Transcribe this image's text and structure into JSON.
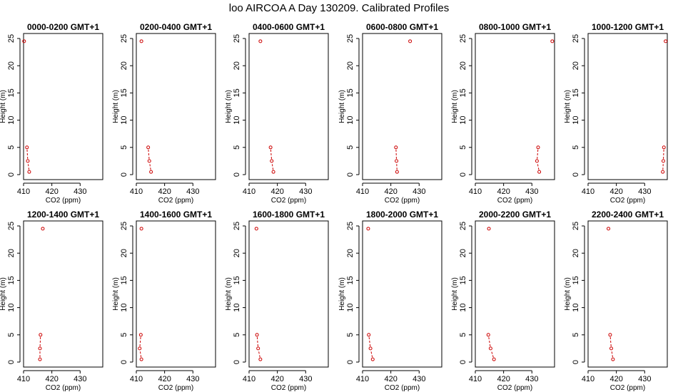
{
  "figure": {
    "title": "loo AIRCOA A  Day 130209. Calibrated Profiles"
  },
  "style": {
    "point_color": "#cc0000",
    "line_color": "#cc0000",
    "axis_color": "#000000"
  },
  "chart_data": [
    {
      "type": "scatter",
      "title": "0000-0200 GMT+1",
      "xlabel": "CO2 (ppm)",
      "ylabel": "Height (m)",
      "xlim": [
        410,
        438
      ],
      "ylim": [
        0,
        25
      ],
      "xticks": [
        410,
        420,
        430
      ],
      "yticks": [
        0,
        5,
        10,
        15,
        20,
        25
      ],
      "lines_connect": [
        0,
        1,
        2,
        3
      ],
      "points": [
        {
          "x": 412.0,
          "y": 0.5
        },
        {
          "x": 411.5,
          "y": 2.5
        },
        {
          "x": 411.2,
          "y": 5.0
        },
        {
          "x": 410.2,
          "y": 24.5
        }
      ]
    },
    {
      "type": "scatter",
      "title": "0200-0400 GMT+1",
      "xlabel": "CO2 (ppm)",
      "ylabel": "Height (m)",
      "xlim": [
        410,
        438
      ],
      "ylim": [
        0,
        25
      ],
      "xticks": [
        410,
        420,
        430
      ],
      "yticks": [
        0,
        5,
        10,
        15,
        20,
        25
      ],
      "lines_connect": [
        0,
        1,
        2,
        3
      ],
      "points": [
        {
          "x": 415.2,
          "y": 0.5
        },
        {
          "x": 414.6,
          "y": 2.5
        },
        {
          "x": 414.2,
          "y": 5.0
        },
        {
          "x": 411.8,
          "y": 24.5
        }
      ]
    },
    {
      "type": "scatter",
      "title": "0400-0600 GMT+1",
      "xlabel": "CO2 (ppm)",
      "ylabel": "Height (m)",
      "xlim": [
        410,
        438
      ],
      "ylim": [
        0,
        25
      ],
      "xticks": [
        410,
        420,
        430
      ],
      "yticks": [
        0,
        5,
        10,
        15,
        20,
        25
      ],
      "lines_connect": [
        0,
        1,
        2,
        3
      ],
      "points": [
        {
          "x": 418.6,
          "y": 0.5
        },
        {
          "x": 418.0,
          "y": 2.5
        },
        {
          "x": 417.6,
          "y": 5.0
        },
        {
          "x": 414.0,
          "y": 24.5
        }
      ]
    },
    {
      "type": "scatter",
      "title": "0600-0800 GMT+1",
      "xlabel": "CO2 (ppm)",
      "ylabel": "Height (m)",
      "xlim": [
        410,
        438
      ],
      "ylim": [
        0,
        25
      ],
      "xticks": [
        410,
        420,
        430
      ],
      "yticks": [
        0,
        5,
        10,
        15,
        20,
        25
      ],
      "lines_connect": [
        0,
        1,
        2,
        3
      ],
      "points": [
        {
          "x": 422.2,
          "y": 0.5
        },
        {
          "x": 422.0,
          "y": 2.5
        },
        {
          "x": 421.8,
          "y": 5.0
        },
        {
          "x": 426.8,
          "y": 24.5
        }
      ]
    },
    {
      "type": "scatter",
      "title": "0800-1000 GMT+1",
      "xlabel": "CO2 (ppm)",
      "ylabel": "Height (m)",
      "xlim": [
        410,
        438
      ],
      "ylim": [
        0,
        25
      ],
      "xticks": [
        410,
        420,
        430
      ],
      "yticks": [
        0,
        5,
        10,
        15,
        20,
        25
      ],
      "lines_connect": [
        0,
        1,
        2,
        3
      ],
      "points": [
        {
          "x": 432.6,
          "y": 0.5
        },
        {
          "x": 431.8,
          "y": 2.5
        },
        {
          "x": 432.2,
          "y": 5.0
        },
        {
          "x": 437.2,
          "y": 24.5
        }
      ]
    },
    {
      "type": "scatter",
      "title": "1000-1200 GMT+1",
      "xlabel": "CO2 (ppm)",
      "ylabel": "Height (m)",
      "xlim": [
        410,
        438
      ],
      "ylim": [
        0,
        25
      ],
      "xticks": [
        410,
        420,
        430
      ],
      "yticks": [
        0,
        5,
        10,
        15,
        20,
        25
      ],
      "lines_connect": [
        0,
        1,
        2,
        3
      ],
      "points": [
        {
          "x": 436.4,
          "y": 0.5
        },
        {
          "x": 436.6,
          "y": 2.5
        },
        {
          "x": 436.8,
          "y": 5.0
        },
        {
          "x": 437.4,
          "y": 24.5
        }
      ]
    },
    {
      "type": "scatter",
      "title": "1200-1400 GMT+1",
      "xlabel": "CO2 (ppm)",
      "ylabel": "Height (m)",
      "xlim": [
        410,
        438
      ],
      "ylim": [
        0,
        25
      ],
      "xticks": [
        410,
        420,
        430
      ],
      "yticks": [
        0,
        5,
        10,
        15,
        20,
        25
      ],
      "lines_connect": [
        0,
        1,
        2,
        3
      ],
      "points": [
        {
          "x": 415.8,
          "y": 0.5
        },
        {
          "x": 415.8,
          "y": 2.5
        },
        {
          "x": 416.0,
          "y": 5.0
        },
        {
          "x": 416.8,
          "y": 24.5
        }
      ]
    },
    {
      "type": "scatter",
      "title": "1400-1600 GMT+1",
      "xlabel": "CO2 (ppm)",
      "ylabel": "Height (m)",
      "xlim": [
        410,
        438
      ],
      "ylim": [
        0,
        25
      ],
      "xticks": [
        410,
        420,
        430
      ],
      "yticks": [
        0,
        5,
        10,
        15,
        20,
        25
      ],
      "lines_connect": [
        0,
        1,
        2,
        3
      ],
      "points": [
        {
          "x": 411.8,
          "y": 0.5
        },
        {
          "x": 411.2,
          "y": 2.5
        },
        {
          "x": 411.6,
          "y": 5.0
        },
        {
          "x": 411.8,
          "y": 24.5
        }
      ]
    },
    {
      "type": "scatter",
      "title": "1600-1800 GMT+1",
      "xlabel": "CO2 (ppm)",
      "ylabel": "Height (m)",
      "xlim": [
        410,
        438
      ],
      "ylim": [
        0,
        25
      ],
      "xticks": [
        410,
        420,
        430
      ],
      "yticks": [
        0,
        5,
        10,
        15,
        20,
        25
      ],
      "lines_connect": [
        0,
        1,
        2,
        3
      ],
      "points": [
        {
          "x": 414.0,
          "y": 0.5
        },
        {
          "x": 413.2,
          "y": 2.5
        },
        {
          "x": 412.8,
          "y": 5.0
        },
        {
          "x": 412.6,
          "y": 24.5
        }
      ]
    },
    {
      "type": "scatter",
      "title": "1800-2000 GMT+1",
      "xlabel": "CO2 (ppm)",
      "ylabel": "Height (m)",
      "xlim": [
        410,
        438
      ],
      "ylim": [
        0,
        25
      ],
      "xticks": [
        410,
        420,
        430
      ],
      "yticks": [
        0,
        5,
        10,
        15,
        20,
        25
      ],
      "lines_connect": [
        0,
        1,
        2,
        3
      ],
      "points": [
        {
          "x": 413.6,
          "y": 0.5
        },
        {
          "x": 412.8,
          "y": 2.5
        },
        {
          "x": 412.2,
          "y": 5.0
        },
        {
          "x": 412.0,
          "y": 24.5
        }
      ]
    },
    {
      "type": "scatter",
      "title": "2000-2200 GMT+1",
      "xlabel": "CO2 (ppm)",
      "ylabel": "Height (m)",
      "xlim": [
        410,
        438
      ],
      "ylim": [
        0,
        25
      ],
      "xticks": [
        410,
        420,
        430
      ],
      "yticks": [
        0,
        5,
        10,
        15,
        20,
        25
      ],
      "lines_connect": [
        0,
        1,
        2,
        3
      ],
      "points": [
        {
          "x": 416.6,
          "y": 0.5
        },
        {
          "x": 415.4,
          "y": 2.5
        },
        {
          "x": 414.6,
          "y": 5.0
        },
        {
          "x": 414.8,
          "y": 24.5
        }
      ]
    },
    {
      "type": "scatter",
      "title": "2200-2400 GMT+1",
      "xlabel": "CO2 (ppm)",
      "ylabel": "Height (m)",
      "xlim": [
        410,
        438
      ],
      "ylim": [
        0,
        25
      ],
      "xticks": [
        410,
        420,
        430
      ],
      "yticks": [
        0,
        5,
        10,
        15,
        20,
        25
      ],
      "lines_connect": [
        0,
        1,
        2,
        3
      ],
      "points": [
        {
          "x": 418.8,
          "y": 0.5
        },
        {
          "x": 418.2,
          "y": 2.5
        },
        {
          "x": 417.8,
          "y": 5.0
        },
        {
          "x": 417.2,
          "y": 24.5
        }
      ]
    }
  ]
}
